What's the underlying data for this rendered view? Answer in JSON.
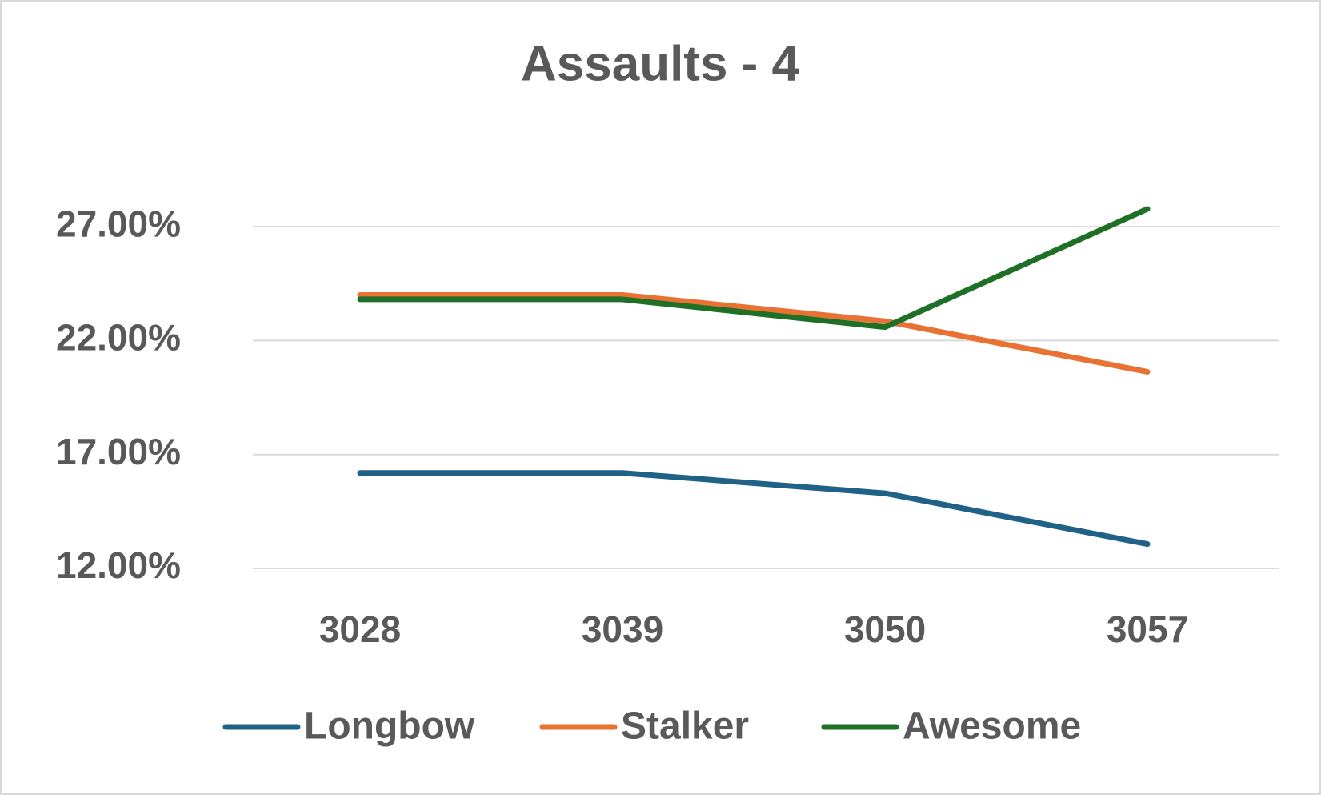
{
  "chart_data": {
    "type": "line",
    "title": "Assaults - 4",
    "categories": [
      "3028",
      "3039",
      "3050",
      "3057"
    ],
    "series": [
      {
        "name": "Longbow",
        "color": "#1f6187",
        "values": [
          16.19,
          16.19,
          15.3,
          13.07
        ]
      },
      {
        "name": "Stalker",
        "color": "#e97132",
        "values": [
          24.0,
          24.0,
          22.85,
          20.63
        ]
      },
      {
        "name": "Awesome",
        "color": "#1d7026",
        "values": [
          23.81,
          23.81,
          22.59,
          27.78
        ]
      }
    ],
    "ylim": [
      12,
      29.5
    ],
    "yticks": [
      {
        "value": 12,
        "label": "12.00%"
      },
      {
        "value": 17,
        "label": "17.00%"
      },
      {
        "value": 22,
        "label": "22.00%"
      },
      {
        "value": 27,
        "label": "27.00%"
      }
    ],
    "grid": true,
    "legend": "bottom"
  }
}
